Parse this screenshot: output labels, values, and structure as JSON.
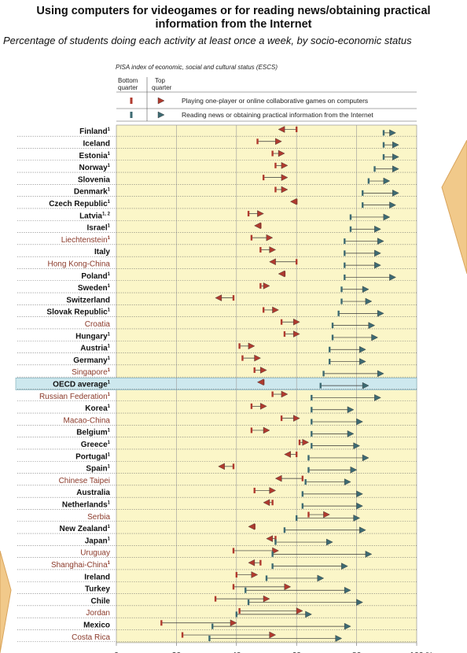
{
  "title_lines": [
    "Using computers for videogames or for reading news/obtaining practical",
    "information from the Internet"
  ],
  "subtitle": "Percentage of students doing each activity at least once a week, by socio-economic status",
  "legend": {
    "index_label": "PISA index of economic, social and cultural status (ESCS)",
    "bottom_quarter": [
      "Bottom",
      "quarter"
    ],
    "top_quarter": [
      "Top",
      "quarter"
    ],
    "games_label": "Playing one-player or online collaborative games on computers",
    "news_label": "Reading news or obtaining practical information from the Internet"
  },
  "colors": {
    "games": "#b03a2e",
    "news": "#3d6a72",
    "plot_bg": "#fbf6c8",
    "oecd_band": "#cde8ee",
    "partner_text": "#8b3a2a",
    "oecd_text": "#111111"
  },
  "chart_data": {
    "type": "dot-range",
    "xlabel": "",
    "x_unit": "%",
    "xlim": [
      0,
      100
    ],
    "ticks": [
      0,
      20,
      40,
      60,
      80,
      100
    ],
    "tick_labels": [
      "0",
      "20",
      "40",
      "60",
      "80",
      "100 %"
    ],
    "series": [
      {
        "name": "Playing one-player or online collaborative games on computers",
        "measure": "bottom quarter → top quarter"
      },
      {
        "name": "Reading news or obtaining practical information from the Internet",
        "measure": "bottom quarter → top quarter"
      }
    ],
    "rows": [
      {
        "name": "Finland",
        "sup": "1",
        "partner": false,
        "games": [
          60,
          55
        ],
        "news": [
          89,
          92
        ]
      },
      {
        "name": "Iceland",
        "sup": "",
        "partner": false,
        "games": [
          47,
          54
        ],
        "news": [
          89,
          93
        ]
      },
      {
        "name": "Estonia",
        "sup": "1",
        "partner": false,
        "games": [
          52,
          55
        ],
        "news": [
          89,
          93
        ]
      },
      {
        "name": "Norway",
        "sup": "1",
        "partner": false,
        "games": [
          53,
          56
        ],
        "news": [
          86,
          93
        ]
      },
      {
        "name": "Slovenia",
        "sup": "",
        "partner": false,
        "games": [
          49,
          56
        ],
        "news": [
          84,
          90
        ]
      },
      {
        "name": "Denmark",
        "sup": "1",
        "partner": false,
        "games": [
          53,
          56
        ],
        "news": [
          82,
          93
        ]
      },
      {
        "name": "Czech Republic",
        "sup": "1",
        "partner": false,
        "games": [
          60,
          59
        ],
        "news": [
          82,
          92
        ]
      },
      {
        "name": "Latvia",
        "sup": "1, 2",
        "partner": false,
        "games": [
          44,
          48
        ],
        "news": [
          78,
          90
        ]
      },
      {
        "name": "Israel",
        "sup": "1",
        "partner": false,
        "games": [
          48,
          47
        ],
        "news": [
          78,
          87
        ]
      },
      {
        "name": "Liechtenstein",
        "sup": "1",
        "partner": true,
        "games": [
          45,
          51
        ],
        "news": [
          76,
          88
        ]
      },
      {
        "name": "Italy",
        "sup": "",
        "partner": false,
        "games": [
          48,
          52
        ],
        "news": [
          76,
          87
        ]
      },
      {
        "name": "Hong Kong-China",
        "sup": "",
        "partner": true,
        "games": [
          60,
          52
        ],
        "news": [
          76,
          87
        ]
      },
      {
        "name": "Poland",
        "sup": "1",
        "partner": false,
        "games": [
          56,
          55
        ],
        "news": [
          76,
          92
        ]
      },
      {
        "name": "Sweden",
        "sup": "1",
        "partner": false,
        "games": [
          48,
          50
        ],
        "news": [
          75,
          83
        ]
      },
      {
        "name": "Switzerland",
        "sup": "",
        "partner": false,
        "games": [
          39,
          34
        ],
        "news": [
          75,
          84
        ]
      },
      {
        "name": "Slovak Republic",
        "sup": "1",
        "partner": false,
        "games": [
          49,
          53
        ],
        "news": [
          74,
          88
        ]
      },
      {
        "name": "Croatia",
        "sup": "",
        "partner": true,
        "games": [
          55,
          60
        ],
        "news": [
          72,
          85
        ]
      },
      {
        "name": "Hungary",
        "sup": "1",
        "partner": false,
        "games": [
          56,
          60
        ],
        "news": [
          72,
          86
        ]
      },
      {
        "name": "Austria",
        "sup": "1",
        "partner": false,
        "games": [
          41,
          45
        ],
        "news": [
          71,
          82
        ]
      },
      {
        "name": "Germany",
        "sup": "1",
        "partner": false,
        "games": [
          42,
          47
        ],
        "news": [
          71,
          82
        ]
      },
      {
        "name": "Singapore",
        "sup": "1",
        "partner": true,
        "games": [
          46,
          49
        ],
        "news": [
          69,
          88
        ]
      },
      {
        "name": "OECD average",
        "sup": "1",
        "partner": false,
        "oecd": true,
        "games": [
          49,
          48
        ],
        "news": [
          68,
          83
        ]
      },
      {
        "name": "Russian Federation",
        "sup": "1",
        "partner": true,
        "games": [
          52,
          56
        ],
        "news": [
          65,
          87
        ]
      },
      {
        "name": "Korea",
        "sup": "1",
        "partner": false,
        "games": [
          45,
          49
        ],
        "news": [
          65,
          78
        ]
      },
      {
        "name": "Macao-China",
        "sup": "",
        "partner": true,
        "games": [
          55,
          60
        ],
        "news": [
          65,
          81
        ]
      },
      {
        "name": "Belgium",
        "sup": "1",
        "partner": false,
        "games": [
          45,
          50
        ],
        "news": [
          65,
          78
        ]
      },
      {
        "name": "Greece",
        "sup": "1",
        "partner": false,
        "games": [
          61,
          63
        ],
        "news": [
          65,
          80
        ]
      },
      {
        "name": "Portugal",
        "sup": "1",
        "partner": false,
        "games": [
          60,
          57
        ],
        "news": [
          64,
          83
        ]
      },
      {
        "name": "Spain",
        "sup": "1",
        "partner": false,
        "games": [
          39,
          35
        ],
        "news": [
          64,
          79
        ]
      },
      {
        "name": "Chinese Taipei",
        "sup": "",
        "partner": true,
        "games": [
          62,
          54
        ],
        "news": [
          63,
          77
        ]
      },
      {
        "name": "Australia",
        "sup": "",
        "partner": false,
        "games": [
          46,
          52
        ],
        "news": [
          62,
          81
        ]
      },
      {
        "name": "Netherlands",
        "sup": "1",
        "partner": false,
        "games": [
          52,
          50
        ],
        "news": [
          62,
          81
        ]
      },
      {
        "name": "Serbia",
        "sup": "",
        "partner": true,
        "games": [
          64,
          70
        ],
        "news": [
          60,
          80
        ]
      },
      {
        "name": "New Zealand",
        "sup": "1",
        "partner": false,
        "games": [
          46,
          45
        ],
        "news": [
          56,
          82
        ]
      },
      {
        "name": "Japan",
        "sup": "1",
        "partner": false,
        "games": [
          53,
          51
        ],
        "news": [
          53,
          71
        ]
      },
      {
        "name": "Uruguay",
        "sup": "",
        "partner": true,
        "games": [
          39,
          53
        ],
        "news": [
          52,
          84
        ]
      },
      {
        "name": "Shanghai-China",
        "sup": "1",
        "partner": true,
        "games": [
          48,
          45
        ],
        "news": [
          52,
          76
        ]
      },
      {
        "name": "Ireland",
        "sup": "",
        "partner": false,
        "games": [
          40,
          46
        ],
        "news": [
          50,
          68
        ]
      },
      {
        "name": "Turkey",
        "sup": "",
        "partner": false,
        "games": [
          39,
          57
        ],
        "news": [
          43,
          77
        ]
      },
      {
        "name": "Chile",
        "sup": "",
        "partner": false,
        "games": [
          33,
          50
        ],
        "news": [
          44,
          81
        ]
      },
      {
        "name": "Jordan",
        "sup": "",
        "partner": true,
        "games": [
          41,
          61
        ],
        "news": [
          40,
          64
        ]
      },
      {
        "name": "Mexico",
        "sup": "",
        "partner": false,
        "games": [
          15,
          39
        ],
        "news": [
          32,
          77
        ]
      },
      {
        "name": "Costa Rica",
        "sup": "",
        "partner": true,
        "games": [
          22,
          52
        ],
        "news": [
          31,
          74
        ]
      }
    ]
  }
}
